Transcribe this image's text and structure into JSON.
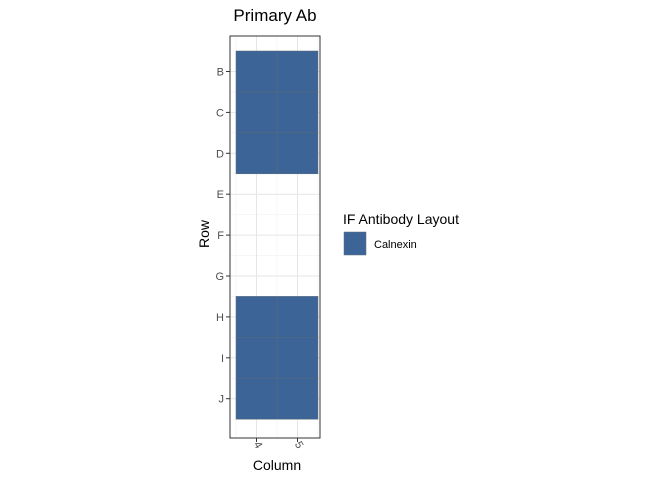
{
  "chart_data": {
    "type": "heatmap",
    "title": "Primary Ab",
    "xlabel": "Column",
    "ylabel": "Row",
    "x_categories": [
      "4",
      "5"
    ],
    "y_categories": [
      "B",
      "C",
      "D",
      "E",
      "F",
      "G",
      "H",
      "I",
      "J"
    ],
    "fill_color": "#3D6496",
    "legend": {
      "title": "IF Antibody Layout",
      "entries": [
        {
          "label": "Calnexin",
          "color": "#3D6496"
        }
      ],
      "placement": "right"
    },
    "cells": [
      {
        "row": "B",
        "col": "4",
        "value": "Calnexin"
      },
      {
        "row": "B",
        "col": "5",
        "value": "Calnexin"
      },
      {
        "row": "C",
        "col": "4",
        "value": "Calnexin"
      },
      {
        "row": "C",
        "col": "5",
        "value": "Calnexin"
      },
      {
        "row": "D",
        "col": "4",
        "value": "Calnexin"
      },
      {
        "row": "D",
        "col": "5",
        "value": "Calnexin"
      },
      {
        "row": "H",
        "col": "4",
        "value": "Calnexin"
      },
      {
        "row": "H",
        "col": "5",
        "value": "Calnexin"
      },
      {
        "row": "I",
        "col": "4",
        "value": "Calnexin"
      },
      {
        "row": "I",
        "col": "5",
        "value": "Calnexin"
      },
      {
        "row": "J",
        "col": "4",
        "value": "Calnexin"
      },
      {
        "row": "J",
        "col": "5",
        "value": "Calnexin"
      }
    ],
    "grid": true
  }
}
